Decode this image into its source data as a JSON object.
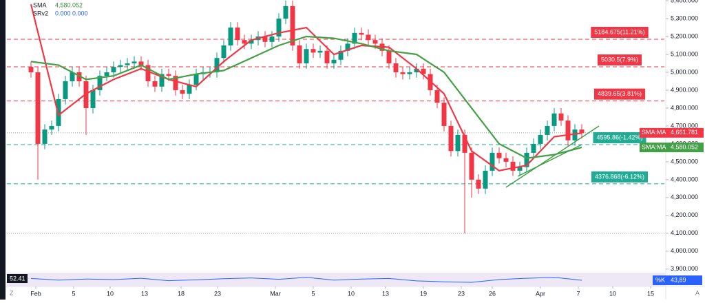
{
  "chart_data": {
    "type": "candlestick",
    "legend": [
      {
        "name": "SMA",
        "value": "4,580.052",
        "color": "#388e3c"
      },
      {
        "name": "SRv2",
        "value": "0.000  0.000",
        "color": "#2962ff"
      }
    ],
    "open": [
      5030,
      5000,
      4600,
      4680,
      4700,
      4850,
      4950,
      5000,
      4950,
      4800,
      4900,
      4980,
      5000,
      5030,
      5040,
      5050,
      5060,
      5040,
      4950,
      4920,
      4990,
      4980,
      4900,
      4880,
      4930,
      4990,
      5000,
      5000,
      5080,
      5150,
      5250,
      5180,
      5160,
      5180,
      5200,
      5170,
      5200,
      5300,
      5370,
      5150,
      5050,
      5130,
      5110,
      5120,
      5050,
      5070,
      5120,
      5160,
      5220,
      5210,
      5180,
      5160,
      5120,
      5050,
      5000,
      4990,
      5000,
      5020,
      4990,
      4900,
      4830,
      4700,
      4560,
      4650,
      4550,
      4400,
      4350,
      4450,
      4550,
      4520,
      4500,
      4450,
      4470,
      4550,
      4600,
      4650,
      4700,
      4770,
      4730,
      4620,
      4680
    ],
    "high": [
      5060,
      5030,
      4710,
      4730,
      4880,
      4980,
      5030,
      5030,
      4980,
      4930,
      5010,
      5030,
      5060,
      5070,
      5080,
      5090,
      5090,
      5070,
      4980,
      5020,
      5020,
      5010,
      4930,
      4960,
      5020,
      5030,
      5030,
      5110,
      5180,
      5280,
      5280,
      5210,
      5210,
      5230,
      5230,
      5230,
      5330,
      5400,
      5400,
      5180,
      5160,
      5160,
      5150,
      5150,
      5100,
      5150,
      5190,
      5250,
      5250,
      5240,
      5210,
      5190,
      5150,
      5080,
      5030,
      5030,
      5050,
      5050,
      5020,
      4930,
      4860,
      4730,
      4680,
      4680,
      4580,
      4430,
      4480,
      4580,
      4580,
      4550,
      4530,
      4500,
      4580,
      4630,
      4680,
      4730,
      4800,
      4800,
      4760,
      4710,
      4710
    ],
    "low": [
      4970,
      4400,
      4570,
      4650,
      4670,
      4820,
      4920,
      4920,
      4650,
      4770,
      4870,
      4950,
      4970,
      5000,
      5010,
      5020,
      5010,
      4920,
      4890,
      4890,
      4950,
      4870,
      4850,
      4850,
      4900,
      4960,
      4970,
      4970,
      5050,
      5120,
      5150,
      5130,
      5130,
      5150,
      5140,
      5140,
      5170,
      5270,
      5120,
      5020,
      5020,
      5080,
      5080,
      5020,
      5020,
      5040,
      5090,
      5130,
      5180,
      5150,
      5130,
      5090,
      5020,
      4970,
      4960,
      4960,
      4970,
      4960,
      4870,
      4800,
      4670,
      4530,
      4530,
      4100,
      4300,
      4320,
      4320,
      4420,
      4490,
      4470,
      4420,
      4420,
      4440,
      4520,
      4570,
      4620,
      4670,
      4700,
      4590,
      4590,
      4630
    ],
    "close": [
      5000,
      4600,
      4680,
      4700,
      4850,
      4950,
      5000,
      4950,
      4800,
      4900,
      4980,
      5000,
      5030,
      5040,
      5050,
      5060,
      5040,
      4950,
      4920,
      4990,
      4980,
      4900,
      4880,
      4930,
      4990,
      5000,
      5000,
      5080,
      5150,
      5250,
      5180,
      5160,
      5180,
      5200,
      5170,
      5200,
      5300,
      5370,
      5150,
      5050,
      5130,
      5110,
      5120,
      5050,
      5070,
      5120,
      5160,
      5220,
      5210,
      5180,
      5160,
      5120,
      5050,
      5000,
      4990,
      5000,
      5020,
      4990,
      4900,
      4830,
      4700,
      4560,
      4650,
      4550,
      4400,
      4350,
      4450,
      4550,
      4520,
      4500,
      4450,
      4470,
      4550,
      4600,
      4650,
      4700,
      4770,
      4730,
      4620,
      4680,
      4660
    ],
    "up_color": "#089981",
    "down_color": "#f23645",
    "lines": [
      {
        "name": "SMA fast",
        "color": "#f23645",
        "x": [
          0,
          4,
          8,
          12,
          16,
          20,
          24,
          28,
          32,
          36,
          40,
          44,
          48,
          52,
          56,
          60,
          64,
          68,
          72,
          76,
          80
        ],
        "values": [
          5380,
          4760,
          4880,
          4960,
          5020,
          4960,
          4920,
          5060,
          5180,
          5220,
          5250,
          5100,
          5150,
          5140,
          5020,
          4880,
          4560,
          4450,
          4480,
          4640,
          4660
        ]
      },
      {
        "name": "SMA slow",
        "color": "#43a047",
        "x": [
          0,
          4,
          8,
          12,
          16,
          20,
          24,
          28,
          32,
          36,
          40,
          44,
          48,
          52,
          56,
          60,
          64,
          68,
          72,
          76,
          80
        ],
        "values": [
          5060,
          5040,
          4960,
          4980,
          5040,
          4960,
          4990,
          5010,
          5080,
          5150,
          5200,
          5190,
          5160,
          5120,
          5100,
          5000,
          4800,
          4600,
          4520,
          4540,
          4580
        ]
      }
    ],
    "levels": [
      {
        "value": 5184.675,
        "label": "5184.675(11.21%)",
        "color": "#f23645"
      },
      {
        "value": 5030.5,
        "label": "5030.5(7.9%)",
        "color": "#f23645"
      },
      {
        "value": 4839.65,
        "label": "4839.65(3.81%)",
        "color": "#f23645"
      },
      {
        "value": 4595.86,
        "label": "4595.86(-1.42%)",
        "color": "#22ab94"
      },
      {
        "value": 4376.868,
        "label": "4376.868(-6.12%)",
        "color": "#22ab94"
      }
    ],
    "reference_lines": [
      4661.781,
      4100
    ],
    "badges": [
      {
        "name": "SMA:MA",
        "value": 4661.781,
        "value_label": "4,661.781",
        "color": "#f23645"
      },
      {
        "name": "SMA:MA",
        "value": 4580.052,
        "value_label": "4,580.052",
        "color": "#43a047"
      }
    ],
    "ylim": [
      3880,
      5404
    ],
    "yticks": [
      {
        "value": 5400,
        "label": "5,400.000"
      },
      {
        "value": 5300,
        "label": "5,300.000"
      },
      {
        "value": 5200,
        "label": "5,200.000"
      },
      {
        "value": 5100,
        "label": "5,100.000"
      },
      {
        "value": 5000,
        "label": "5,000.000"
      },
      {
        "value": 4900,
        "label": "4,900.000"
      },
      {
        "value": 4800,
        "label": "4,800.000"
      },
      {
        "value": 4700,
        "label": "4,700.000"
      },
      {
        "value": 4600,
        "label": "4,600.000"
      },
      {
        "value": 4500,
        "label": "4,500.000"
      },
      {
        "value": 4400,
        "label": "4,400.000"
      },
      {
        "value": 4300,
        "label": "4,300.000"
      },
      {
        "value": 4200,
        "label": "4,200.000"
      },
      {
        "value": 4100,
        "label": "4,100.000"
      },
      {
        "value": 4000,
        "label": "4,000.000"
      },
      {
        "value": 3900,
        "label": "3,900.000"
      }
    ],
    "xlim": [
      -0.5,
      92
    ],
    "xticks": [
      {
        "value": 0.7,
        "label": "Feb"
      },
      {
        "value": 6.2,
        "label": "5"
      },
      {
        "value": 11.5,
        "label": "10"
      },
      {
        "value": 16.5,
        "label": "13"
      },
      {
        "value": 21.8,
        "label": "18"
      },
      {
        "value": 27.1,
        "label": "23"
      },
      {
        "value": 35.5,
        "label": "Mar"
      },
      {
        "value": 41,
        "label": "5"
      },
      {
        "value": 46.5,
        "label": "10"
      },
      {
        "value": 51.5,
        "label": "13"
      },
      {
        "value": 57,
        "label": "19"
      },
      {
        "value": 62.5,
        "label": "23"
      },
      {
        "value": 67,
        "label": "26"
      },
      {
        "value": 74,
        "label": "Apr"
      },
      {
        "value": 79.5,
        "label": "7"
      },
      {
        "value": 84.5,
        "label": "10"
      },
      {
        "value": 90,
        "label": "15"
      }
    ],
    "oscillator": {
      "label": "52.41",
      "badge_name": "%K",
      "badge_value": "43,89",
      "ylim": [
        0,
        100
      ],
      "x": [
        0,
        4,
        8,
        12,
        16,
        20,
        24,
        28,
        32,
        36,
        40,
        44,
        48,
        52,
        56,
        60,
        64,
        68,
        72,
        76,
        80
      ],
      "values": [
        60,
        45,
        55,
        50,
        62,
        40,
        48,
        58,
        65,
        52,
        70,
        45,
        55,
        60,
        38,
        30,
        25,
        50,
        62,
        70,
        44
      ]
    },
    "corner_left": "Z",
    "corner_right": "A"
  }
}
